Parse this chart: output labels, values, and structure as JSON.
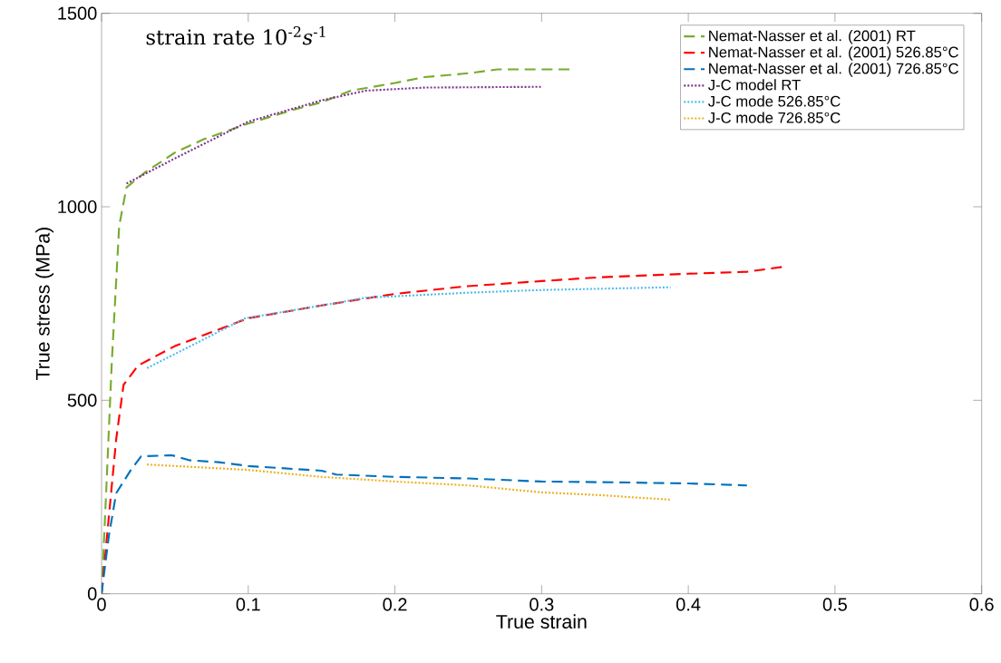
{
  "chart_data": {
    "type": "line",
    "xlabel": "True strain",
    "ylabel": "True stress (MPa)",
    "annotations": [
      "strain rate 10$^{-2}$*s*$^{-1}$"
    ],
    "xlim": [
      0,
      0.6
    ],
    "ylim": [
      0,
      1500
    ],
    "xticks": [
      0,
      0.1,
      0.2,
      0.3,
      0.4,
      0.5,
      0.6
    ],
    "yticks": [
      0,
      500,
      1000,
      1500
    ],
    "grid": false,
    "legend": "top right",
    "marker": "none",
    "series": [
      {
        "name": "Nemat-Nasser et al. (2001) RT",
        "color": "#77ac30",
        "line_style": "dashed",
        "x": [
          0,
          0.003,
          0.007,
          0.012,
          0.017,
          0.03,
          0.05,
          0.07,
          0.1,
          0.13,
          0.15,
          0.17,
          0.2,
          0.22,
          0.25,
          0.27,
          0.32
        ],
        "values": [
          0,
          250,
          600,
          950,
          1050,
          1090,
          1140,
          1175,
          1215,
          1250,
          1270,
          1300,
          1320,
          1335,
          1345,
          1355,
          1355
        ]
      },
      {
        "name": "Nemat-Nasser et al. (2001) 526.85°C",
        "color": "#ff0000",
        "line_style": "dashed",
        "x": [
          0,
          0.005,
          0.01,
          0.015,
          0.025,
          0.05,
          0.1,
          0.15,
          0.2,
          0.25,
          0.3,
          0.34,
          0.4,
          0.44,
          0.465
        ],
        "values": [
          0,
          200,
          400,
          540,
          590,
          640,
          712,
          745,
          775,
          795,
          808,
          818,
          827,
          832,
          845
        ]
      },
      {
        "name": "Nemat-Nasser et al. (2001) 726.85°C",
        "color": "#0072bd",
        "line_style": "dashed",
        "x": [
          0,
          0.005,
          0.01,
          0.02,
          0.027,
          0.048,
          0.06,
          0.08,
          0.1,
          0.15,
          0.16,
          0.2,
          0.25,
          0.3,
          0.35,
          0.4,
          0.44
        ],
        "values": [
          0,
          150,
          260,
          320,
          355,
          358,
          345,
          340,
          330,
          318,
          308,
          302,
          298,
          290,
          288,
          285,
          280
        ]
      },
      {
        "name": "J-C model RT",
        "color": "#7e2f8e",
        "line_style": "dotted",
        "x": [
          0.017,
          0.05,
          0.1,
          0.15,
          0.18,
          0.22,
          0.3
        ],
        "values": [
          1060,
          1125,
          1220,
          1275,
          1300,
          1308,
          1310
        ]
      },
      {
        "name": "J-C mode 526.85°C",
        "color": "#4dbeee",
        "line_style": "dotted",
        "x": [
          0.031,
          0.098,
          0.15,
          0.18,
          0.25,
          0.3,
          0.388
        ],
        "values": [
          583,
          712,
          745,
          765,
          778,
          785,
          792
        ]
      },
      {
        "name": "J-C mode 726.85°C",
        "color": "#edb120",
        "line_style": "dotted",
        "x": [
          0.031,
          0.1,
          0.15,
          0.2,
          0.25,
          0.3,
          0.339,
          0.388
        ],
        "values": [
          334,
          320,
          302,
          290,
          280,
          262,
          255,
          243
        ]
      }
    ]
  }
}
